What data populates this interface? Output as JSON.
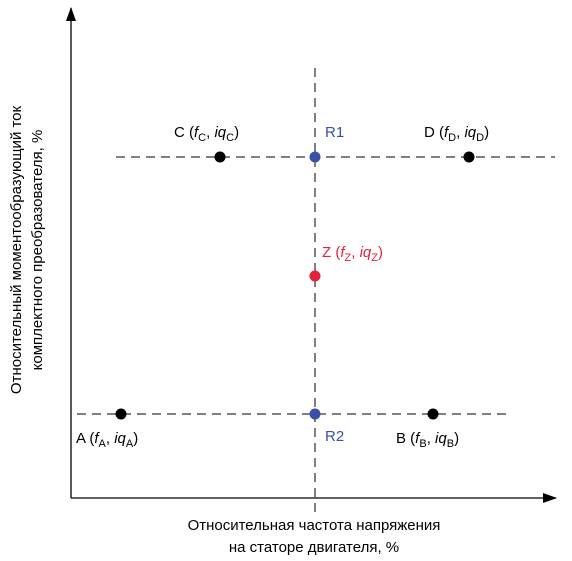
{
  "axes": {
    "x_label_line1": "Относительная частота напряжения",
    "x_label_line2": "на статоре двигателя, %",
    "y_label_line1": "Относительный моментообразующий ток",
    "y_label_line2": "комплектного преобразователя, %"
  },
  "points": [
    {
      "id": "A",
      "letter": "A (",
      "f": "f",
      "f_sub": "A",
      "sep": ", ",
      "iq": "iq",
      "iq_sub": "A",
      "close": ")",
      "color": "#000000"
    },
    {
      "id": "B",
      "letter": "B (",
      "f": "f",
      "f_sub": "B",
      "sep": ", ",
      "iq": "iq",
      "iq_sub": "B",
      "close": ")",
      "color": "#000000"
    },
    {
      "id": "C",
      "letter": "C (",
      "f": "f",
      "f_sub": "C",
      "sep": ", ",
      "iq": "iq",
      "iq_sub": "C",
      "close": ")",
      "color": "#000000"
    },
    {
      "id": "D",
      "letter": "D (",
      "f": "f",
      "f_sub": "D",
      "sep": ", ",
      "iq": "iq",
      "iq_sub": "D",
      "close": ")",
      "color": "#000000"
    },
    {
      "id": "Z",
      "letter": "Z (",
      "f": "f",
      "f_sub": "Z",
      "sep": ", ",
      "iq": "iq",
      "iq_sub": "Z",
      "close": ")",
      "color": "#e0223a"
    }
  ],
  "reference_points": [
    {
      "id": "R1",
      "label": "R1",
      "color": "#3b4fa8"
    },
    {
      "id": "R2",
      "label": "R2",
      "color": "#3b4fa8"
    }
  ]
}
